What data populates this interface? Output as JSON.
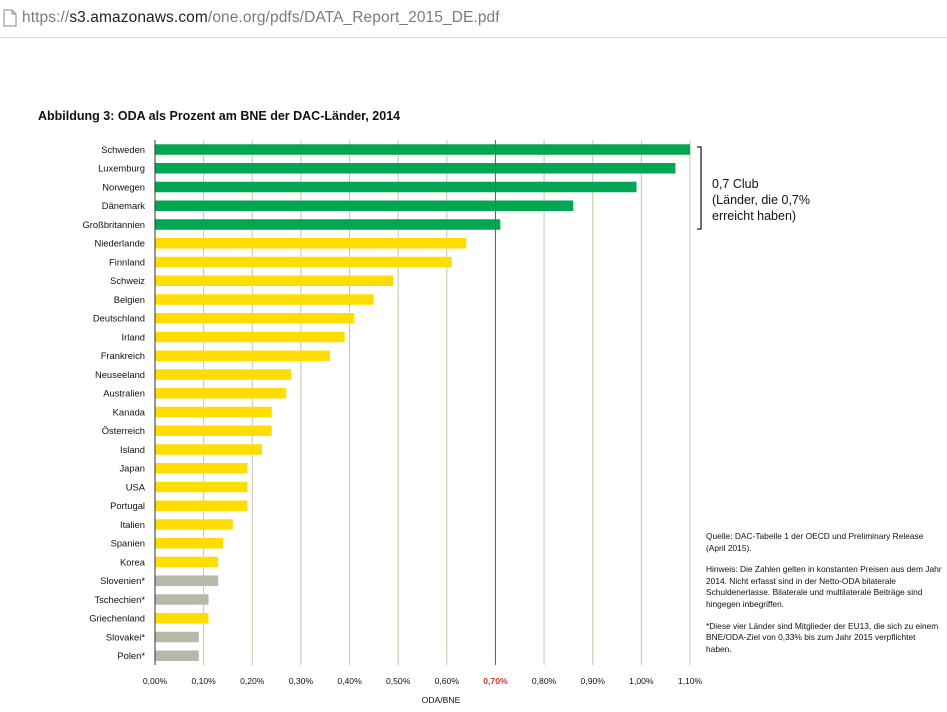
{
  "browser": {
    "url_scheme": "https://",
    "url_host": "s3.amazonaws.com",
    "url_path": "/one.org/pdfs/DATA_Report_2015_DE.pdf"
  },
  "chart_title": "Abbildung 3: ODA als Prozent am BNE der DAC-Länder, 2014",
  "chart_data": {
    "type": "bar",
    "orientation": "horizontal",
    "categories": [
      "Schweden",
      "Luxemburg",
      "Norwegen",
      "Dänemark",
      "Großbritannien",
      "Niederlande",
      "Finnland",
      "Schweiz",
      "Belgien",
      "Deutschland",
      "Irland",
      "Frankreich",
      "Neuseeland",
      "Australien",
      "Kanada",
      "Österreich",
      "Island",
      "Japan",
      "USA",
      "Portugal",
      "Italien",
      "Spanien",
      "Korea",
      "Slovenien*",
      "Tschechien*",
      "Griechenland",
      "Slovakei*",
      "Polen*"
    ],
    "values": [
      1.1,
      1.07,
      0.99,
      0.86,
      0.71,
      0.64,
      0.61,
      0.49,
      0.45,
      0.41,
      0.39,
      0.36,
      0.28,
      0.27,
      0.24,
      0.24,
      0.22,
      0.19,
      0.19,
      0.19,
      0.16,
      0.14,
      0.13,
      0.13,
      0.11,
      0.11,
      0.09,
      0.09
    ],
    "bar_groups": [
      "club",
      "club",
      "club",
      "club",
      "club",
      "other",
      "other",
      "other",
      "other",
      "other",
      "other",
      "other",
      "other",
      "other",
      "other",
      "other",
      "other",
      "other",
      "other",
      "other",
      "other",
      "other",
      "other",
      "eu13",
      "eu13",
      "other",
      "eu13",
      "eu13"
    ],
    "colors": {
      "club": "#00a651",
      "other": "#ffdd00",
      "eu13": "#b5b9a8",
      "target_line": "#c0392b",
      "grid": "#c9c4a8"
    },
    "xlim": [
      0,
      1.1
    ],
    "xticks": [
      0,
      0.1,
      0.2,
      0.3,
      0.4,
      0.5,
      0.6,
      0.7,
      0.8,
      0.9,
      1.0,
      1.1
    ],
    "xtick_labels": [
      "0,00%",
      "0,10%",
      "0,20%",
      "0,30%",
      "0,40%",
      "0,50%",
      "0,60%",
      "0,70%",
      "0,80%",
      "0,90%",
      "1,00%",
      "1,10%"
    ],
    "highlight_tick": "0,70%",
    "target_value": 0.7,
    "xlabel": "ODA/BNE",
    "grid": true
  },
  "annotation": {
    "line1": "0,7 Club",
    "line2": "(Länder, die 0,7%",
    "line3": "erreicht haben)"
  },
  "notes": {
    "source": "Quelle: DAC-Tabelle 1 der OECD und Preliminary Release (April 2015).",
    "hint": "Hinweis: Die Zahlen gelten in konstanten Preisen aus dem Jahr 2014. Nicht erfasst sind in der Netto-ODA bilaterale Schuldenerlasse. Bilaterale und multilaterale Beiträge sind hingegen inbegriffen.",
    "footnote": "*Diese vier Länder sind Mitglieder der EU13, die sich zu einem BNE/ODA-Ziel von 0,33% bis zum Jahr 2015 verpflichtet haben."
  }
}
